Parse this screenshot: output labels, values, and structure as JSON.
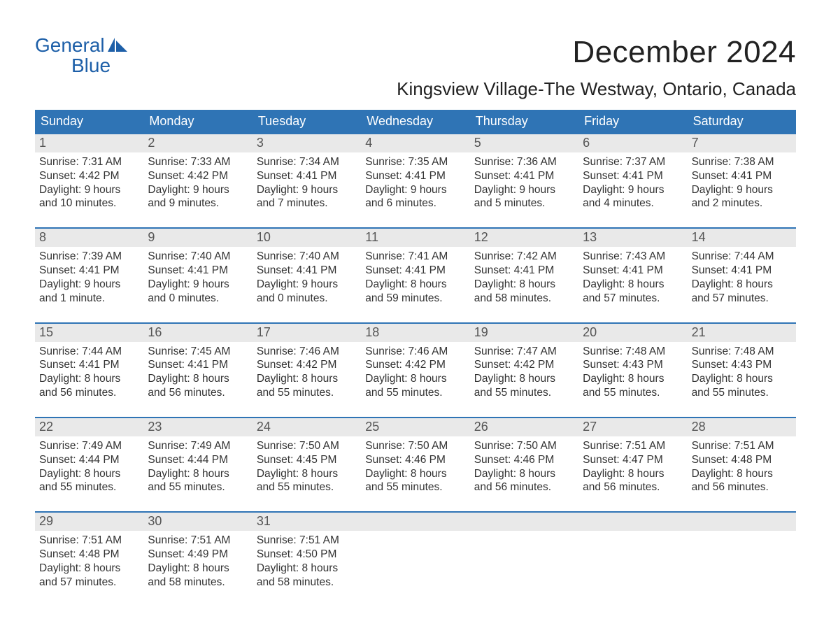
{
  "brand": {
    "word1": "General",
    "word2": "Blue",
    "icon_color": "#1d5fa8"
  },
  "title": "December 2024",
  "location": "Kingsview Village-The Westway, Ontario, Canada",
  "colors": {
    "header_bg": "#2f74b5",
    "header_text": "#ffffff",
    "week_rule": "#2f74b5",
    "daynum_bg": "#e9e9e9",
    "daynum_text": "#555555",
    "body_text": "#333333",
    "page_bg": "#ffffff"
  },
  "day_of_week": [
    "Sunday",
    "Monday",
    "Tuesday",
    "Wednesday",
    "Thursday",
    "Friday",
    "Saturday"
  ],
  "labels": {
    "sunrise": "Sunrise:",
    "sunset": "Sunset:",
    "daylight": "Daylight:"
  },
  "weeks": [
    [
      {
        "n": "1",
        "sr": "7:31 AM",
        "ss": "4:42 PM",
        "dl": "9 hours and 10 minutes."
      },
      {
        "n": "2",
        "sr": "7:33 AM",
        "ss": "4:42 PM",
        "dl": "9 hours and 9 minutes."
      },
      {
        "n": "3",
        "sr": "7:34 AM",
        "ss": "4:41 PM",
        "dl": "9 hours and 7 minutes."
      },
      {
        "n": "4",
        "sr": "7:35 AM",
        "ss": "4:41 PM",
        "dl": "9 hours and 6 minutes."
      },
      {
        "n": "5",
        "sr": "7:36 AM",
        "ss": "4:41 PM",
        "dl": "9 hours and 5 minutes."
      },
      {
        "n": "6",
        "sr": "7:37 AM",
        "ss": "4:41 PM",
        "dl": "9 hours and 4 minutes."
      },
      {
        "n": "7",
        "sr": "7:38 AM",
        "ss": "4:41 PM",
        "dl": "9 hours and 2 minutes."
      }
    ],
    [
      {
        "n": "8",
        "sr": "7:39 AM",
        "ss": "4:41 PM",
        "dl": "9 hours and 1 minute."
      },
      {
        "n": "9",
        "sr": "7:40 AM",
        "ss": "4:41 PM",
        "dl": "9 hours and 0 minutes."
      },
      {
        "n": "10",
        "sr": "7:40 AM",
        "ss": "4:41 PM",
        "dl": "9 hours and 0 minutes."
      },
      {
        "n": "11",
        "sr": "7:41 AM",
        "ss": "4:41 PM",
        "dl": "8 hours and 59 minutes."
      },
      {
        "n": "12",
        "sr": "7:42 AM",
        "ss": "4:41 PM",
        "dl": "8 hours and 58 minutes."
      },
      {
        "n": "13",
        "sr": "7:43 AM",
        "ss": "4:41 PM",
        "dl": "8 hours and 57 minutes."
      },
      {
        "n": "14",
        "sr": "7:44 AM",
        "ss": "4:41 PM",
        "dl": "8 hours and 57 minutes."
      }
    ],
    [
      {
        "n": "15",
        "sr": "7:44 AM",
        "ss": "4:41 PM",
        "dl": "8 hours and 56 minutes."
      },
      {
        "n": "16",
        "sr": "7:45 AM",
        "ss": "4:41 PM",
        "dl": "8 hours and 56 minutes."
      },
      {
        "n": "17",
        "sr": "7:46 AM",
        "ss": "4:42 PM",
        "dl": "8 hours and 55 minutes."
      },
      {
        "n": "18",
        "sr": "7:46 AM",
        "ss": "4:42 PM",
        "dl": "8 hours and 55 minutes."
      },
      {
        "n": "19",
        "sr": "7:47 AM",
        "ss": "4:42 PM",
        "dl": "8 hours and 55 minutes."
      },
      {
        "n": "20",
        "sr": "7:48 AM",
        "ss": "4:43 PM",
        "dl": "8 hours and 55 minutes."
      },
      {
        "n": "21",
        "sr": "7:48 AM",
        "ss": "4:43 PM",
        "dl": "8 hours and 55 minutes."
      }
    ],
    [
      {
        "n": "22",
        "sr": "7:49 AM",
        "ss": "4:44 PM",
        "dl": "8 hours and 55 minutes."
      },
      {
        "n": "23",
        "sr": "7:49 AM",
        "ss": "4:44 PM",
        "dl": "8 hours and 55 minutes."
      },
      {
        "n": "24",
        "sr": "7:50 AM",
        "ss": "4:45 PM",
        "dl": "8 hours and 55 minutes."
      },
      {
        "n": "25",
        "sr": "7:50 AM",
        "ss": "4:46 PM",
        "dl": "8 hours and 55 minutes."
      },
      {
        "n": "26",
        "sr": "7:50 AM",
        "ss": "4:46 PM",
        "dl": "8 hours and 56 minutes."
      },
      {
        "n": "27",
        "sr": "7:51 AM",
        "ss": "4:47 PM",
        "dl": "8 hours and 56 minutes."
      },
      {
        "n": "28",
        "sr": "7:51 AM",
        "ss": "4:48 PM",
        "dl": "8 hours and 56 minutes."
      }
    ],
    [
      {
        "n": "29",
        "sr": "7:51 AM",
        "ss": "4:48 PM",
        "dl": "8 hours and 57 minutes."
      },
      {
        "n": "30",
        "sr": "7:51 AM",
        "ss": "4:49 PM",
        "dl": "8 hours and 58 minutes."
      },
      {
        "n": "31",
        "sr": "7:51 AM",
        "ss": "4:50 PM",
        "dl": "8 hours and 58 minutes."
      },
      null,
      null,
      null,
      null
    ]
  ]
}
